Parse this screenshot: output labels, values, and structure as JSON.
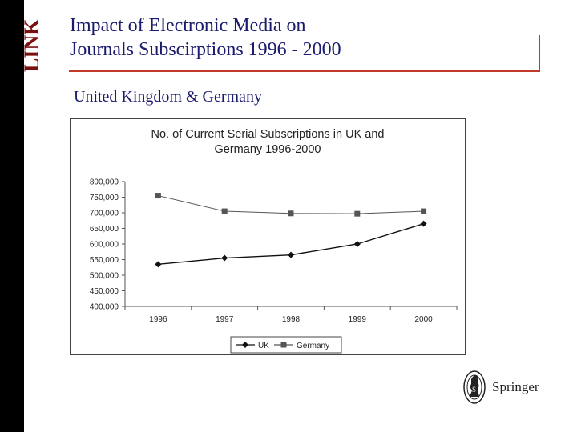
{
  "slide": {
    "logo_text": "LINK",
    "title_lines": [
      "Impact of Electronic Media on",
      "Journals Subscirptions 1996 - 2000"
    ],
    "subtitle": "United Kingdom & Germany",
    "publisher": "Springer",
    "accent_color": "#c0392b",
    "title_color": "#1a1a6e"
  },
  "chart_data": {
    "type": "line",
    "title_lines": [
      "No. of Current Serial Subscriptions in UK and",
      "Germany 1996-2000"
    ],
    "categories": [
      "1996",
      "1997",
      "1998",
      "1999",
      "2000"
    ],
    "y_ticks": [
      "800,000",
      "750,000",
      "700,000",
      "650,000",
      "600,000",
      "550,000",
      "500,000",
      "450,000",
      "400,000"
    ],
    "ylim": [
      400000,
      800000
    ],
    "series": [
      {
        "name": "UK",
        "marker": "diamond",
        "color": "#111111",
        "values": [
          535000,
          555000,
          565000,
          600000,
          665000
        ]
      },
      {
        "name": "Germany",
        "marker": "square",
        "color": "#555555",
        "values": [
          755000,
          705000,
          698000,
          697000,
          705000
        ]
      }
    ],
    "legend_position": "bottom",
    "grid": false
  }
}
